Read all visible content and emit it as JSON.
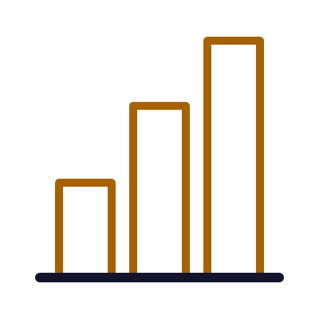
{
  "icon": {
    "name": "bar-chart-icon",
    "colors": {
      "bar_stroke": "#A66100",
      "baseline": "#12142B",
      "background": "#FFFFFF"
    },
    "bars": [
      {
        "name": "short-bar",
        "relative_height": 0.39
      },
      {
        "name": "medium-bar",
        "relative_height": 0.72
      },
      {
        "name": "tall-bar",
        "relative_height": 1.0
      }
    ]
  }
}
